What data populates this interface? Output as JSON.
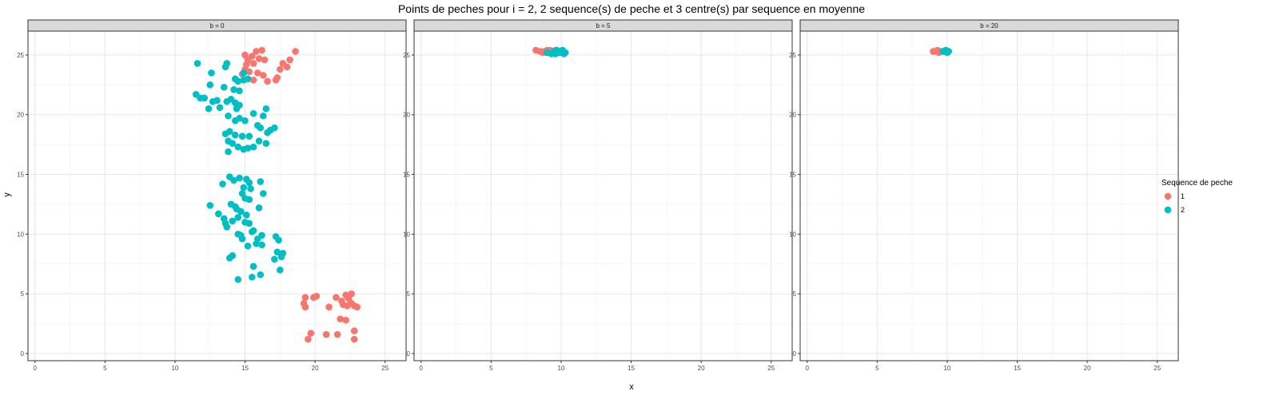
{
  "chart_data": {
    "type": "scatter",
    "title": "Points de peches pour i = 2, 2 sequence(s) de peche et 3 centre(s) par sequence en moyenne",
    "xlabel": "x",
    "ylabel": "y",
    "xlim": [
      -0.5,
      26.5
    ],
    "ylim": [
      -0.6,
      27.0
    ],
    "xticks": [
      0,
      5,
      10,
      15,
      20,
      25
    ],
    "yticks": [
      0,
      5,
      10,
      15,
      20,
      25
    ],
    "grid": true,
    "legend": {
      "title": "Sequence de peche",
      "position": "right",
      "entries": [
        {
          "label": "1",
          "color": "#F8766D"
        },
        {
          "label": "2",
          "color": "#00BFC4"
        }
      ]
    },
    "panels": [
      {
        "label": "b = 0",
        "series": [
          {
            "name": "1",
            "color": "#F8766D",
            "points": [
              [
                15.0,
                25.0
              ],
              [
                15.2,
                24.6
              ],
              [
                15.8,
                25.3
              ],
              [
                16.2,
                25.4
              ],
              [
                15.5,
                24.9
              ],
              [
                16.0,
                24.7
              ],
              [
                16.4,
                24.6
              ],
              [
                15.1,
                24.2
              ],
              [
                15.6,
                24.3
              ],
              [
                15.0,
                23.8
              ],
              [
                15.3,
                23.6
              ],
              [
                15.9,
                23.5
              ],
              [
                16.3,
                23.3
              ],
              [
                14.8,
                23.4
              ],
              [
                15.2,
                23.0
              ],
              [
                15.6,
                22.9
              ],
              [
                16.6,
                22.8
              ],
              [
                17.3,
                23.1
              ],
              [
                17.5,
                23.8
              ],
              [
                17.7,
                24.3
              ],
              [
                18.0,
                24.0
              ],
              [
                18.2,
                24.6
              ],
              [
                18.6,
                25.3
              ],
              [
                17.2,
                22.9
              ],
              [
                19.3,
                4.7
              ],
              [
                19.2,
                4.2
              ],
              [
                19.3,
                3.9
              ],
              [
                19.9,
                4.7
              ],
              [
                20.1,
                4.8
              ],
              [
                21.0,
                3.9
              ],
              [
                21.5,
                4.7
              ],
              [
                21.9,
                4.4
              ],
              [
                22.2,
                4.9
              ],
              [
                22.4,
                4.6
              ],
              [
                22.6,
                5.0
              ],
              [
                22.0,
                4.1
              ],
              [
                22.3,
                4.0
              ],
              [
                22.6,
                4.2
              ],
              [
                22.8,
                4.0
              ],
              [
                23.0,
                3.9
              ],
              [
                21.8,
                2.9
              ],
              [
                22.2,
                2.8
              ],
              [
                22.8,
                1.9
              ],
              [
                22.8,
                1.2
              ],
              [
                21.6,
                1.6
              ],
              [
                20.8,
                1.6
              ],
              [
                19.7,
                1.7
              ],
              [
                19.5,
                1.2
              ]
            ]
          },
          {
            "name": "2",
            "color": "#00BFC4",
            "points": [
              [
                11.6,
                24.3
              ],
              [
                13.7,
                24.3
              ],
              [
                13.6,
                24.0
              ],
              [
                12.6,
                23.5
              ],
              [
                14.3,
                23.0
              ],
              [
                14.5,
                22.8
              ],
              [
                14.9,
                23.5
              ],
              [
                14.9,
                22.9
              ],
              [
                15.2,
                23.0
              ],
              [
                13.5,
                22.3
              ],
              [
                12.5,
                22.5
              ],
              [
                14.2,
                22.1
              ],
              [
                14.6,
                22.0
              ],
              [
                11.5,
                21.7
              ],
              [
                11.8,
                21.4
              ],
              [
                12.1,
                21.4
              ],
              [
                12.7,
                21.1
              ],
              [
                13.0,
                21.2
              ],
              [
                13.2,
                20.6
              ],
              [
                12.4,
                20.5
              ],
              [
                13.7,
                21.1
              ],
              [
                14.0,
                21.3
              ],
              [
                14.3,
                21.0
              ],
              [
                14.6,
                20.8
              ],
              [
                14.4,
                20.5
              ],
              [
                13.8,
                19.9
              ],
              [
                14.3,
                19.5
              ],
              [
                14.6,
                19.7
              ],
              [
                15.0,
                19.5
              ],
              [
                15.6,
                20.1
              ],
              [
                16.5,
                20.5
              ],
              [
                16.3,
                19.9
              ],
              [
                15.9,
                19.1
              ],
              [
                16.1,
                18.9
              ],
              [
                16.8,
                18.7
              ],
              [
                17.1,
                18.9
              ],
              [
                16.6,
                18.5
              ],
              [
                13.6,
                18.4
              ],
              [
                13.9,
                18.6
              ],
              [
                14.3,
                18.3
              ],
              [
                14.8,
                18.2
              ],
              [
                15.3,
                18.2
              ],
              [
                13.8,
                17.8
              ],
              [
                14.1,
                17.6
              ],
              [
                14.5,
                17.3
              ],
              [
                14.9,
                17.1
              ],
              [
                15.2,
                17.2
              ],
              [
                15.6,
                17.3
              ],
              [
                16.0,
                17.8
              ],
              [
                16.5,
                17.6
              ],
              [
                13.8,
                16.9
              ],
              [
                13.9,
                14.8
              ],
              [
                14.2,
                14.5
              ],
              [
                14.6,
                14.7
              ],
              [
                15.1,
                14.6
              ],
              [
                15.3,
                14.3
              ],
              [
                13.4,
                14.2
              ],
              [
                14.9,
                13.9
              ],
              [
                15.4,
                13.8
              ],
              [
                16.1,
                14.4
              ],
              [
                16.3,
                13.4
              ],
              [
                14.8,
                13.4
              ],
              [
                15.3,
                12.9
              ],
              [
                15.0,
                13.0
              ],
              [
                16.0,
                12.2
              ],
              [
                14.4,
                12.1
              ],
              [
                14.0,
                12.5
              ],
              [
                14.3,
                12.3
              ],
              [
                14.7,
                11.9
              ],
              [
                15.1,
                11.6
              ],
              [
                12.5,
                12.4
              ],
              [
                13.1,
                11.7
              ],
              [
                13.5,
                11.3
              ],
              [
                13.6,
                10.9
              ],
              [
                13.7,
                10.6
              ],
              [
                14.1,
                11.1
              ],
              [
                14.5,
                11.4
              ],
              [
                15.0,
                11.0
              ],
              [
                15.3,
                10.9
              ],
              [
                15.6,
                10.3
              ],
              [
                14.7,
                9.9
              ],
              [
                14.8,
                9.6
              ],
              [
                14.5,
                10.0
              ],
              [
                15.5,
                10.2
              ],
              [
                15.9,
                9.6
              ],
              [
                16.2,
                9.9
              ],
              [
                15.2,
                9.0
              ],
              [
                15.8,
                9.2
              ],
              [
                16.2,
                9.1
              ],
              [
                17.2,
                9.8
              ],
              [
                17.4,
                9.5
              ],
              [
                17.3,
                8.5
              ],
              [
                17.6,
                8.1
              ],
              [
                17.1,
                7.9
              ],
              [
                17.7,
                8.4
              ],
              [
                13.9,
                8.0
              ],
              [
                14.1,
                8.2
              ],
              [
                15.6,
                7.3
              ],
              [
                16.1,
                6.6
              ],
              [
                15.5,
                6.4
              ],
              [
                14.5,
                6.2
              ],
              [
                17.5,
                7.0
              ]
            ]
          }
        ]
      },
      {
        "label": "b = 5",
        "series": [
          {
            "name": "1",
            "color": "#F8766D",
            "points": [
              [
                8.2,
                25.4
              ],
              [
                8.5,
                25.3
              ],
              [
                8.8,
                25.3
              ],
              [
                9.0,
                25.4
              ],
              [
                9.2,
                25.4
              ],
              [
                9.4,
                25.3
              ],
              [
                9.6,
                25.4
              ],
              [
                8.7,
                25.2
              ],
              [
                9.1,
                25.2
              ]
            ]
          },
          {
            "name": "2",
            "color": "#00BFC4",
            "points": [
              [
                9.0,
                25.2
              ],
              [
                9.3,
                25.1
              ],
              [
                9.5,
                25.3
              ],
              [
                9.7,
                25.4
              ],
              [
                9.9,
                25.2
              ],
              [
                10.1,
                25.4
              ],
              [
                10.3,
                25.2
              ],
              [
                9.6,
                25.1
              ],
              [
                10.0,
                25.3
              ],
              [
                10.2,
                25.1
              ]
            ]
          }
        ]
      },
      {
        "label": "b = 20",
        "series": [
          {
            "name": "1",
            "color": "#F8766D",
            "points": [
              [
                9.0,
                25.3
              ],
              [
                9.2,
                25.3
              ],
              [
                9.4,
                25.2
              ],
              [
                9.3,
                25.4
              ],
              [
                9.5,
                25.3
              ]
            ]
          },
          {
            "name": "2",
            "color": "#00BFC4",
            "points": [
              [
                9.7,
                25.3
              ],
              [
                9.9,
                25.4
              ],
              [
                10.0,
                25.2
              ],
              [
                9.8,
                25.3
              ],
              [
                10.1,
                25.3
              ]
            ]
          }
        ]
      }
    ]
  }
}
